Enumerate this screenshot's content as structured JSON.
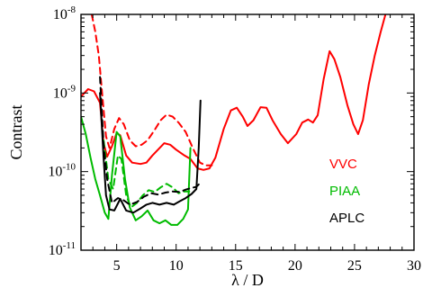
{
  "chart_data": {
    "type": "line",
    "xlabel": "λ / D",
    "ylabel": "Contrast",
    "xlim": [
      2,
      30
    ],
    "ylim_log10": [
      -11,
      -8
    ],
    "yscale": "log",
    "grid": false,
    "legend_placement": "right",
    "x_ticks": [
      5,
      10,
      15,
      20,
      25,
      30
    ],
    "y_ticks": [
      {
        "exp": -8,
        "base": "10",
        "sup": "-8"
      },
      {
        "exp": -9,
        "base": "10",
        "sup": "-9"
      },
      {
        "exp": -10,
        "base": "10",
        "sup": "-10"
      },
      {
        "exp": -11,
        "base": "10",
        "sup": "-11"
      }
    ],
    "series": [
      {
        "name": "VVC",
        "color": "#ff0000",
        "style": "solid",
        "points": [
          [
            2.0,
            9e-10
          ],
          [
            2.6,
            1.12e-09
          ],
          [
            3.1,
            1.05e-09
          ],
          [
            3.6,
            7.5e-10
          ],
          [
            3.9,
            2.3e-10
          ],
          [
            4.2,
            1.55e-10
          ],
          [
            4.6,
            2.1e-10
          ],
          [
            5.0,
            3.1e-10
          ],
          [
            5.3,
            2.9e-10
          ],
          [
            5.8,
            1.6e-10
          ],
          [
            6.3,
            1.3e-10
          ],
          [
            7.0,
            1.25e-10
          ],
          [
            7.5,
            1.3e-10
          ],
          [
            8.0,
            1.6e-10
          ],
          [
            9.0,
            2.3e-10
          ],
          [
            9.5,
            2.2e-10
          ],
          [
            10.0,
            1.9e-10
          ],
          [
            10.7,
            1.6e-10
          ],
          [
            11.2,
            1.45e-10
          ],
          [
            11.8,
            1.1e-10
          ],
          [
            12.3,
            1.05e-10
          ],
          [
            12.8,
            1.1e-10
          ],
          [
            13.3,
            1.5e-10
          ],
          [
            14.0,
            3.5e-10
          ],
          [
            14.6,
            6e-10
          ],
          [
            15.1,
            6.5e-10
          ],
          [
            15.6,
            5e-10
          ],
          [
            16.0,
            3.8e-10
          ],
          [
            16.5,
            4.5e-10
          ],
          [
            17.1,
            6.6e-10
          ],
          [
            17.6,
            6.5e-10
          ],
          [
            18.1,
            4.5e-10
          ],
          [
            18.8,
            3e-10
          ],
          [
            19.4,
            2.3e-10
          ],
          [
            20.1,
            3e-10
          ],
          [
            20.6,
            4.2e-10
          ],
          [
            21.1,
            4.6e-10
          ],
          [
            21.5,
            4.2e-10
          ],
          [
            21.9,
            5.2e-10
          ],
          [
            22.4,
            1.5e-09
          ],
          [
            22.9,
            3.4e-09
          ],
          [
            23.3,
            2.7e-09
          ],
          [
            23.8,
            1.6e-09
          ],
          [
            24.4,
            7e-10
          ],
          [
            24.9,
            4e-10
          ],
          [
            25.3,
            3e-10
          ],
          [
            25.7,
            4.5e-10
          ],
          [
            26.2,
            1.3e-09
          ],
          [
            26.7,
            3e-09
          ],
          [
            27.2,
            6e-09
          ],
          [
            27.6,
            1e-08
          ]
        ]
      },
      {
        "name": "",
        "color": "#ff0000",
        "style": "dashed",
        "points": [
          [
            2.9,
            1e-08
          ],
          [
            3.2,
            6e-09
          ],
          [
            3.5,
            3e-09
          ],
          [
            3.8,
            9e-10
          ],
          [
            4.1,
            2.8e-10
          ],
          [
            4.4,
            2e-10
          ],
          [
            4.8,
            3.5e-10
          ],
          [
            5.2,
            4.8e-10
          ],
          [
            5.6,
            4e-10
          ],
          [
            6.1,
            2.5e-10
          ],
          [
            6.6,
            2.1e-10
          ],
          [
            7.1,
            2.2e-10
          ],
          [
            7.6,
            2.5e-10
          ],
          [
            8.2,
            3.4e-10
          ],
          [
            8.7,
            4.5e-10
          ],
          [
            9.2,
            5.3e-10
          ],
          [
            9.7,
            5e-10
          ],
          [
            10.2,
            4.2e-10
          ],
          [
            10.8,
            3.2e-10
          ],
          [
            11.4,
            2e-10
          ],
          [
            12.0,
            1.3e-10
          ],
          [
            12.5,
            1.2e-10
          ],
          [
            13.0,
            1.2e-10
          ]
        ]
      },
      {
        "name": "PIAA",
        "color": "#00bb00",
        "style": "solid",
        "points": [
          [
            2.0,
            5e-10
          ],
          [
            2.4,
            3e-10
          ],
          [
            2.8,
            1.5e-10
          ],
          [
            3.2,
            8e-11
          ],
          [
            3.6,
            5e-11
          ],
          [
            4.0,
            3e-11
          ],
          [
            4.3,
            2.5e-11
          ],
          [
            4.6,
            9e-11
          ],
          [
            5.0,
            3.2e-10
          ],
          [
            5.3,
            2.8e-10
          ],
          [
            5.7,
            8e-11
          ],
          [
            6.1,
            3.5e-11
          ],
          [
            6.6,
            2.4e-11
          ],
          [
            7.1,
            2.7e-11
          ],
          [
            7.6,
            3.2e-11
          ],
          [
            8.1,
            2.4e-11
          ],
          [
            8.6,
            2.2e-11
          ],
          [
            9.1,
            2.4e-11
          ],
          [
            9.6,
            2.1e-11
          ],
          [
            10.1,
            2.1e-11
          ],
          [
            10.6,
            2.5e-11
          ],
          [
            11.0,
            3.3e-11
          ],
          [
            11.2,
            2e-10
          ]
        ]
      },
      {
        "name": "",
        "color": "#00bb00",
        "style": "dashed",
        "points": [
          [
            3.9,
            2.5e-10
          ],
          [
            4.3,
            8e-11
          ],
          [
            4.7,
            6e-11
          ],
          [
            5.1,
            1.6e-10
          ],
          [
            5.4,
            1.45e-10
          ],
          [
            5.8,
            5e-11
          ],
          [
            6.2,
            3.5e-11
          ],
          [
            6.7,
            4e-11
          ],
          [
            7.2,
            5e-11
          ],
          [
            7.7,
            5.8e-11
          ],
          [
            8.2,
            5.5e-11
          ],
          [
            8.7,
            6.3e-11
          ],
          [
            9.2,
            7e-11
          ],
          [
            9.7,
            6.3e-11
          ],
          [
            10.2,
            5.3e-11
          ],
          [
            10.7,
            5.6e-11
          ],
          [
            11.1,
            5.6e-11
          ]
        ]
      },
      {
        "name": "APLC",
        "color": "#000000",
        "style": "solid",
        "points": [
          [
            3.6,
            1e-09
          ],
          [
            3.9,
            1.5e-10
          ],
          [
            4.1,
            5e-11
          ],
          [
            4.4,
            3.3e-11
          ],
          [
            4.8,
            3.2e-11
          ],
          [
            5.3,
            4.5e-11
          ],
          [
            5.8,
            3.2e-11
          ],
          [
            6.4,
            3e-11
          ],
          [
            7.0,
            3.4e-11
          ],
          [
            7.5,
            3.8e-11
          ],
          [
            8.0,
            4e-11
          ],
          [
            8.6,
            3.8e-11
          ],
          [
            9.2,
            4e-11
          ],
          [
            9.8,
            3.8e-11
          ],
          [
            10.3,
            4.2e-11
          ],
          [
            10.8,
            4.6e-11
          ],
          [
            11.3,
            5.2e-11
          ],
          [
            11.7,
            6e-11
          ],
          [
            11.9,
            2e-10
          ],
          [
            12.05,
            8e-10
          ]
        ]
      },
      {
        "name": "",
        "color": "#000000",
        "style": "dashed",
        "points": [
          [
            3.6,
            1.6e-09
          ],
          [
            3.9,
            2.2e-10
          ],
          [
            4.2,
            8e-11
          ],
          [
            4.6,
            4e-11
          ],
          [
            5.1,
            4.6e-11
          ],
          [
            5.6,
            4.3e-11
          ],
          [
            6.1,
            3.8e-11
          ],
          [
            6.7,
            4.1e-11
          ],
          [
            7.3,
            4.8e-11
          ],
          [
            7.9,
            5.3e-11
          ],
          [
            8.5,
            5.1e-11
          ],
          [
            9.1,
            5.4e-11
          ],
          [
            9.7,
            5.6e-11
          ],
          [
            10.3,
            5.5e-11
          ],
          [
            10.8,
            5.9e-11
          ],
          [
            11.3,
            6.2e-11
          ],
          [
            11.7,
            6.4e-11
          ],
          [
            11.95,
            7e-11
          ]
        ]
      }
    ]
  }
}
